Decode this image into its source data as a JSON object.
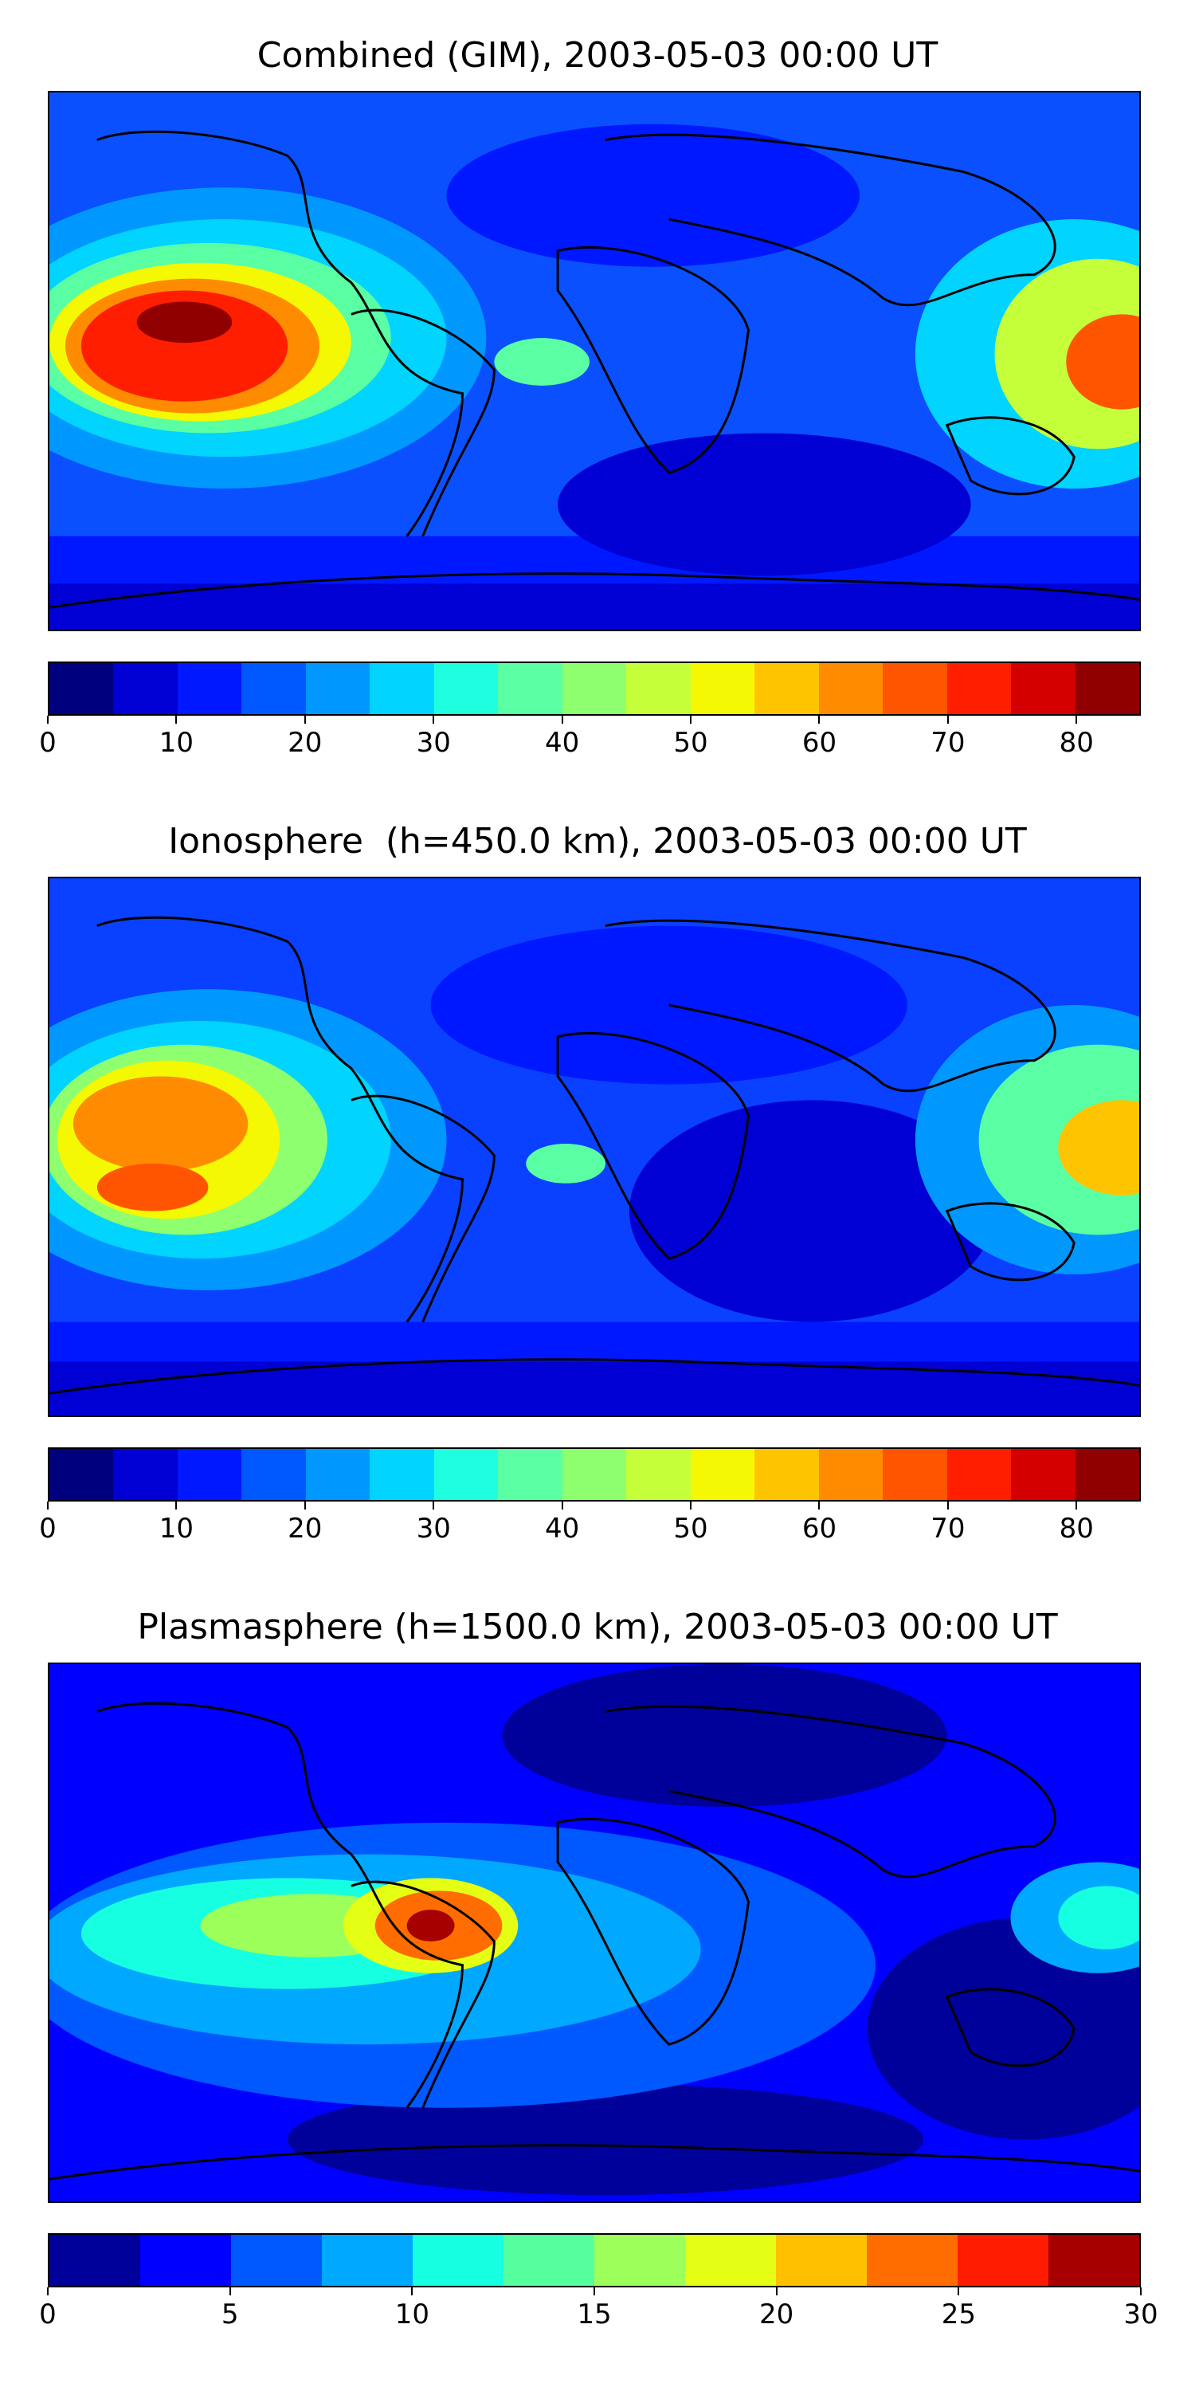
{
  "panels": [
    {
      "title": "Combined (GIM), 2003-05-03 00:00 UT",
      "colorbar": {
        "colors": [
          "#00007f",
          "#0000d4",
          "#0018ff",
          "#0058ff",
          "#0098ff",
          "#00d4ff",
          "#1fffe0",
          "#5affa4",
          "#8eff6f",
          "#c4ff3a",
          "#f4f802",
          "#ffc400",
          "#ff8c00",
          "#ff5500",
          "#ff1e00",
          "#d40000",
          "#900000"
        ],
        "range": [
          0,
          85
        ],
        "ticks": [
          "0",
          "10",
          "20",
          "30",
          "40",
          "50",
          "60",
          "70",
          "80"
        ],
        "tick_values": [
          0,
          10,
          20,
          30,
          40,
          50,
          60,
          70,
          80
        ]
      }
    },
    {
      "title": "Ionosphere  (h=450.0 km), 2003-05-03 00:00 UT",
      "colorbar": {
        "colors": [
          "#00007f",
          "#0000d4",
          "#0018ff",
          "#0058ff",
          "#0098ff",
          "#00d4ff",
          "#1fffe0",
          "#5affa4",
          "#8eff6f",
          "#c4ff3a",
          "#f4f802",
          "#ffc400",
          "#ff8c00",
          "#ff5500",
          "#ff1e00",
          "#d40000",
          "#900000"
        ],
        "range": [
          0,
          85
        ],
        "ticks": [
          "0",
          "10",
          "20",
          "30",
          "40",
          "50",
          "60",
          "70",
          "80"
        ],
        "tick_values": [
          0,
          10,
          20,
          30,
          40,
          50,
          60,
          70,
          80
        ]
      }
    },
    {
      "title": "Plasmasphere (h=1500.0 km), 2003-05-03 00:00 UT",
      "colorbar": {
        "colors": [
          "#00009a",
          "#0000ff",
          "#0058ff",
          "#00a8ff",
          "#16ffe0",
          "#56ff9e",
          "#9cff5a",
          "#e4ff14",
          "#ffc000",
          "#ff6c00",
          "#ff1c00",
          "#a60000"
        ],
        "range": [
          0,
          30
        ],
        "ticks": [
          "0",
          "5",
          "10",
          "15",
          "20",
          "25",
          "30"
        ],
        "tick_values": [
          0,
          5,
          10,
          15,
          20,
          25,
          30
        ]
      }
    }
  ]
}
